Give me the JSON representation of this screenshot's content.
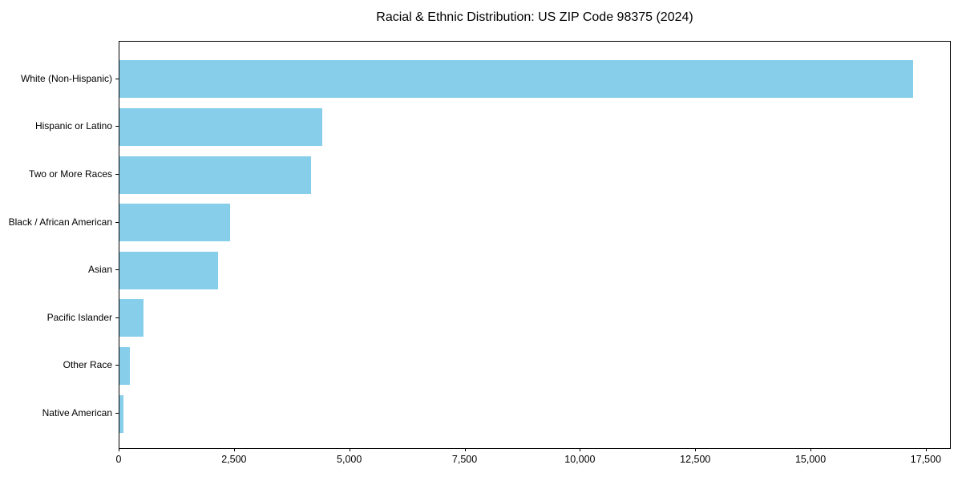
{
  "title": "Racial & Ethnic Distribution: US ZIP Code 98375 (2024)",
  "colors": {
    "bar": "#87CEEB",
    "axis": "#000000",
    "text": "#000000",
    "background": "#FFFFFF"
  },
  "chart_data": {
    "type": "bar",
    "orientation": "horizontal",
    "title": "Racial & Ethnic Distribution: US ZIP Code 98375 (2024)",
    "categories": [
      "White (Non-Hispanic)",
      "Hispanic or Latino",
      "Two or More Races",
      "Black / African American",
      "Asian",
      "Pacific Islander",
      "Other Race",
      "Native American"
    ],
    "values": [
      17200,
      4400,
      4150,
      2400,
      2130,
      530,
      220,
      80
    ],
    "xlabel": "",
    "ylabel": "",
    "xlim": [
      0,
      18040
    ],
    "x_ticks": [
      0,
      2500,
      5000,
      7500,
      10000,
      12500,
      15000,
      17500
    ],
    "x_tick_labels": [
      "0",
      "2,500",
      "5,000",
      "7,500",
      "10,000",
      "12,500",
      "15,000",
      "17,500"
    ],
    "bar_color": "#87CEEB",
    "grid": false,
    "legend": null
  }
}
